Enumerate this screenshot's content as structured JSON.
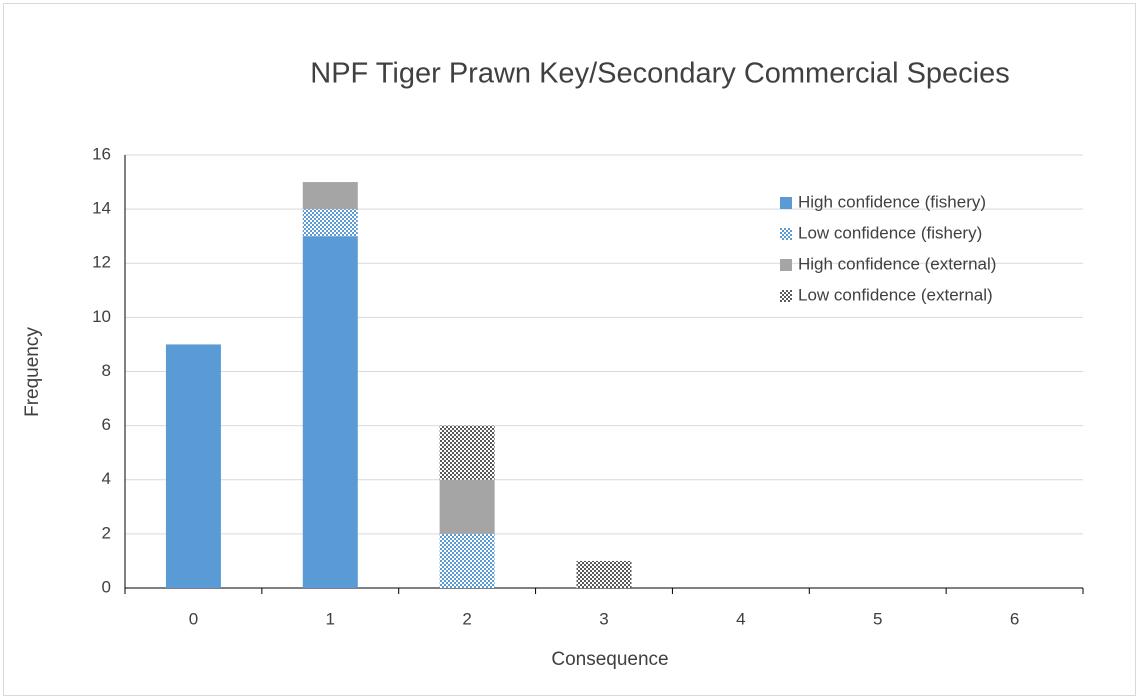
{
  "chart_data": {
    "type": "stacked_bar",
    "title": "NPF Tiger Prawn Key/Secondary Commercial Species",
    "x_label": "Consequence",
    "y_label": "Frequency",
    "categories": [
      "0",
      "1",
      "2",
      "3",
      "4",
      "5",
      "6"
    ],
    "series": [
      {
        "name": "High confidence (fishery)",
        "color": "#5b9bd5",
        "pattern": false,
        "values": [
          9,
          13,
          0,
          0,
          0,
          0,
          0
        ]
      },
      {
        "name": "Low confidence (fishery)",
        "color": "#5b9bd5",
        "pattern": true,
        "values": [
          0,
          1,
          2,
          0,
          0,
          0,
          0
        ]
      },
      {
        "name": "High confidence (external)",
        "color": "#a5a5a5",
        "pattern": false,
        "values": [
          0,
          1,
          2,
          0,
          0,
          0,
          0
        ]
      },
      {
        "name": "Low confidence (external)",
        "color": "#595959",
        "pattern": true,
        "values": [
          0,
          0,
          2,
          1,
          0,
          0,
          0
        ]
      }
    ],
    "ylim": [
      0,
      16
    ],
    "yticks": [
      0,
      2,
      4,
      6,
      8,
      10,
      12,
      14,
      16
    ],
    "grid": true,
    "legend": "upper right"
  }
}
